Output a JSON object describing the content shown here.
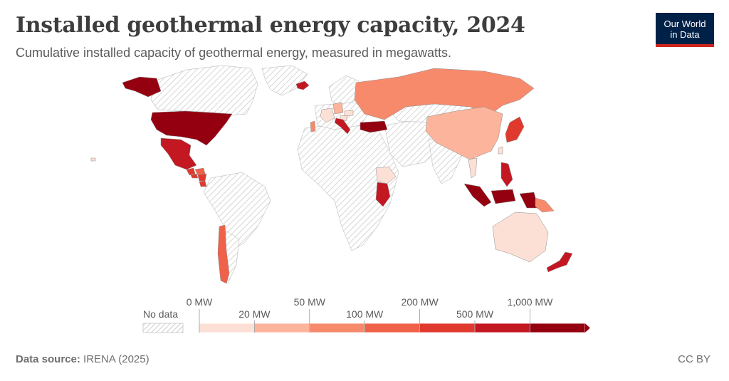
{
  "header": {
    "title": "Installed geothermal energy capacity, 2024",
    "subtitle": "Cumulative installed capacity of geothermal energy, measured in megawatts."
  },
  "logo": {
    "line1": "Our World",
    "line2": "in Data",
    "bg_color": "#002147",
    "accent_color": "#ce261e"
  },
  "legend": {
    "no_data_label": "No data",
    "bins": [
      {
        "label": "0 MW",
        "color": "#fde0d5"
      },
      {
        "label": "20 MW",
        "color": "#fcb49c"
      },
      {
        "label": "50 MW",
        "color": "#f88a6c"
      },
      {
        "label": "100 MW",
        "color": "#ef6148"
      },
      {
        "label": "200 MW",
        "color": "#e03a2f"
      },
      {
        "label": "500 MW",
        "color": "#c31822"
      },
      {
        "label": "1,000 MW",
        "color": "#950010"
      }
    ]
  },
  "map_data": {
    "type": "choropleth",
    "year": 2024,
    "unit": "MW",
    "no_data_color": "#f2f2f2",
    "countries": [
      {
        "name": "United States",
        "bin": 6
      },
      {
        "name": "Mexico",
        "bin": 5
      },
      {
        "name": "Guatemala",
        "bin": 4
      },
      {
        "name": "El Salvador",
        "bin": 4
      },
      {
        "name": "Honduras",
        "bin": 3
      },
      {
        "name": "Nicaragua",
        "bin": 4
      },
      {
        "name": "Costa Rica",
        "bin": 4
      },
      {
        "name": "Chile",
        "bin": 3
      },
      {
        "name": "Iceland",
        "bin": 5
      },
      {
        "name": "Portugal",
        "bin": 2
      },
      {
        "name": "France",
        "bin": 0
      },
      {
        "name": "Germany",
        "bin": 1
      },
      {
        "name": "Hungary",
        "bin": 0
      },
      {
        "name": "Croatia",
        "bin": 0
      },
      {
        "name": "Italy",
        "bin": 5
      },
      {
        "name": "Turkey",
        "bin": 6
      },
      {
        "name": "Russia",
        "bin": 2
      },
      {
        "name": "China",
        "bin": 1
      },
      {
        "name": "Japan",
        "bin": 4
      },
      {
        "name": "Taiwan",
        "bin": 0
      },
      {
        "name": "Thailand",
        "bin": 0
      },
      {
        "name": "Philippines",
        "bin": 5
      },
      {
        "name": "Indonesia",
        "bin": 6
      },
      {
        "name": "Papua New Guinea",
        "bin": 2
      },
      {
        "name": "Ethiopia",
        "bin": 0
      },
      {
        "name": "Kenya",
        "bin": 5
      },
      {
        "name": "Australia",
        "bin": 0
      },
      {
        "name": "New Zealand",
        "bin": 5
      },
      {
        "name": "Guadeloupe",
        "bin": 0
      }
    ]
  },
  "footer": {
    "source_label": "Data source:",
    "source_value": "IRENA (2025)",
    "license": "CC BY"
  }
}
